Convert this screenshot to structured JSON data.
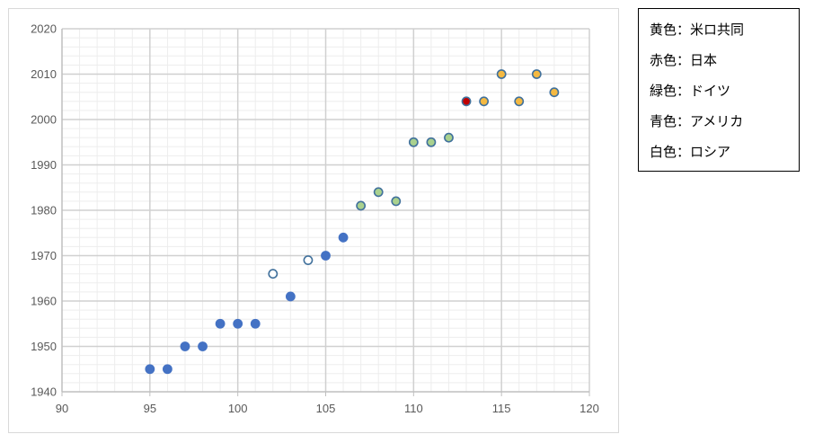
{
  "chart_data": {
    "type": "scatter",
    "title": "",
    "xlabel": "",
    "ylabel": "",
    "xlim": [
      90,
      120
    ],
    "ylim": [
      1940,
      2020
    ],
    "x_major_ticks": [
      90,
      95,
      100,
      105,
      110,
      115,
      120
    ],
    "y_major_ticks": [
      1940,
      1950,
      1960,
      1970,
      1980,
      1990,
      2000,
      2010,
      2020
    ],
    "x_minor_step": 1,
    "y_minor_step": 2,
    "grid": true,
    "series": [
      {
        "key": "usa",
        "fill": "#4472c4",
        "stroke": "#4472c4",
        "points": [
          {
            "x": 95,
            "y": 1945
          },
          {
            "x": 96,
            "y": 1945
          },
          {
            "x": 97,
            "y": 1950
          },
          {
            "x": 98,
            "y": 1950
          },
          {
            "x": 99,
            "y": 1955
          },
          {
            "x": 100,
            "y": 1955
          },
          {
            "x": 101,
            "y": 1955
          },
          {
            "x": 103,
            "y": 1961
          },
          {
            "x": 105,
            "y": 1970
          },
          {
            "x": 106,
            "y": 1974
          }
        ]
      },
      {
        "key": "russia",
        "fill": "#ffffff",
        "stroke": "#41719c",
        "points": [
          {
            "x": 102,
            "y": 1966
          },
          {
            "x": 104,
            "y": 1969
          }
        ]
      },
      {
        "key": "germany",
        "fill": "#a9d18e",
        "stroke": "#41719c",
        "points": [
          {
            "x": 107,
            "y": 1981
          },
          {
            "x": 108,
            "y": 1984
          },
          {
            "x": 109,
            "y": 1982
          },
          {
            "x": 110,
            "y": 1995
          },
          {
            "x": 111,
            "y": 1995
          },
          {
            "x": 112,
            "y": 1996
          }
        ]
      },
      {
        "key": "japan",
        "fill": "#c00000",
        "stroke": "#41719c",
        "points": [
          {
            "x": 113,
            "y": 2004
          }
        ]
      },
      {
        "key": "us-uk",
        "fill": "#f4b942",
        "stroke": "#41719c",
        "points": [
          {
            "x": 114,
            "y": 2004
          },
          {
            "x": 115,
            "y": 2010
          },
          {
            "x": 116,
            "y": 2004
          },
          {
            "x": 117,
            "y": 2010
          },
          {
            "x": 118,
            "y": 2006
          }
        ]
      }
    ],
    "legend": {
      "position": "right",
      "items": [
        "黄色：米ロ共同",
        "赤色：日本",
        "緑色：ドイツ",
        "青色：アメリカ",
        "白色：ロシア"
      ]
    }
  }
}
